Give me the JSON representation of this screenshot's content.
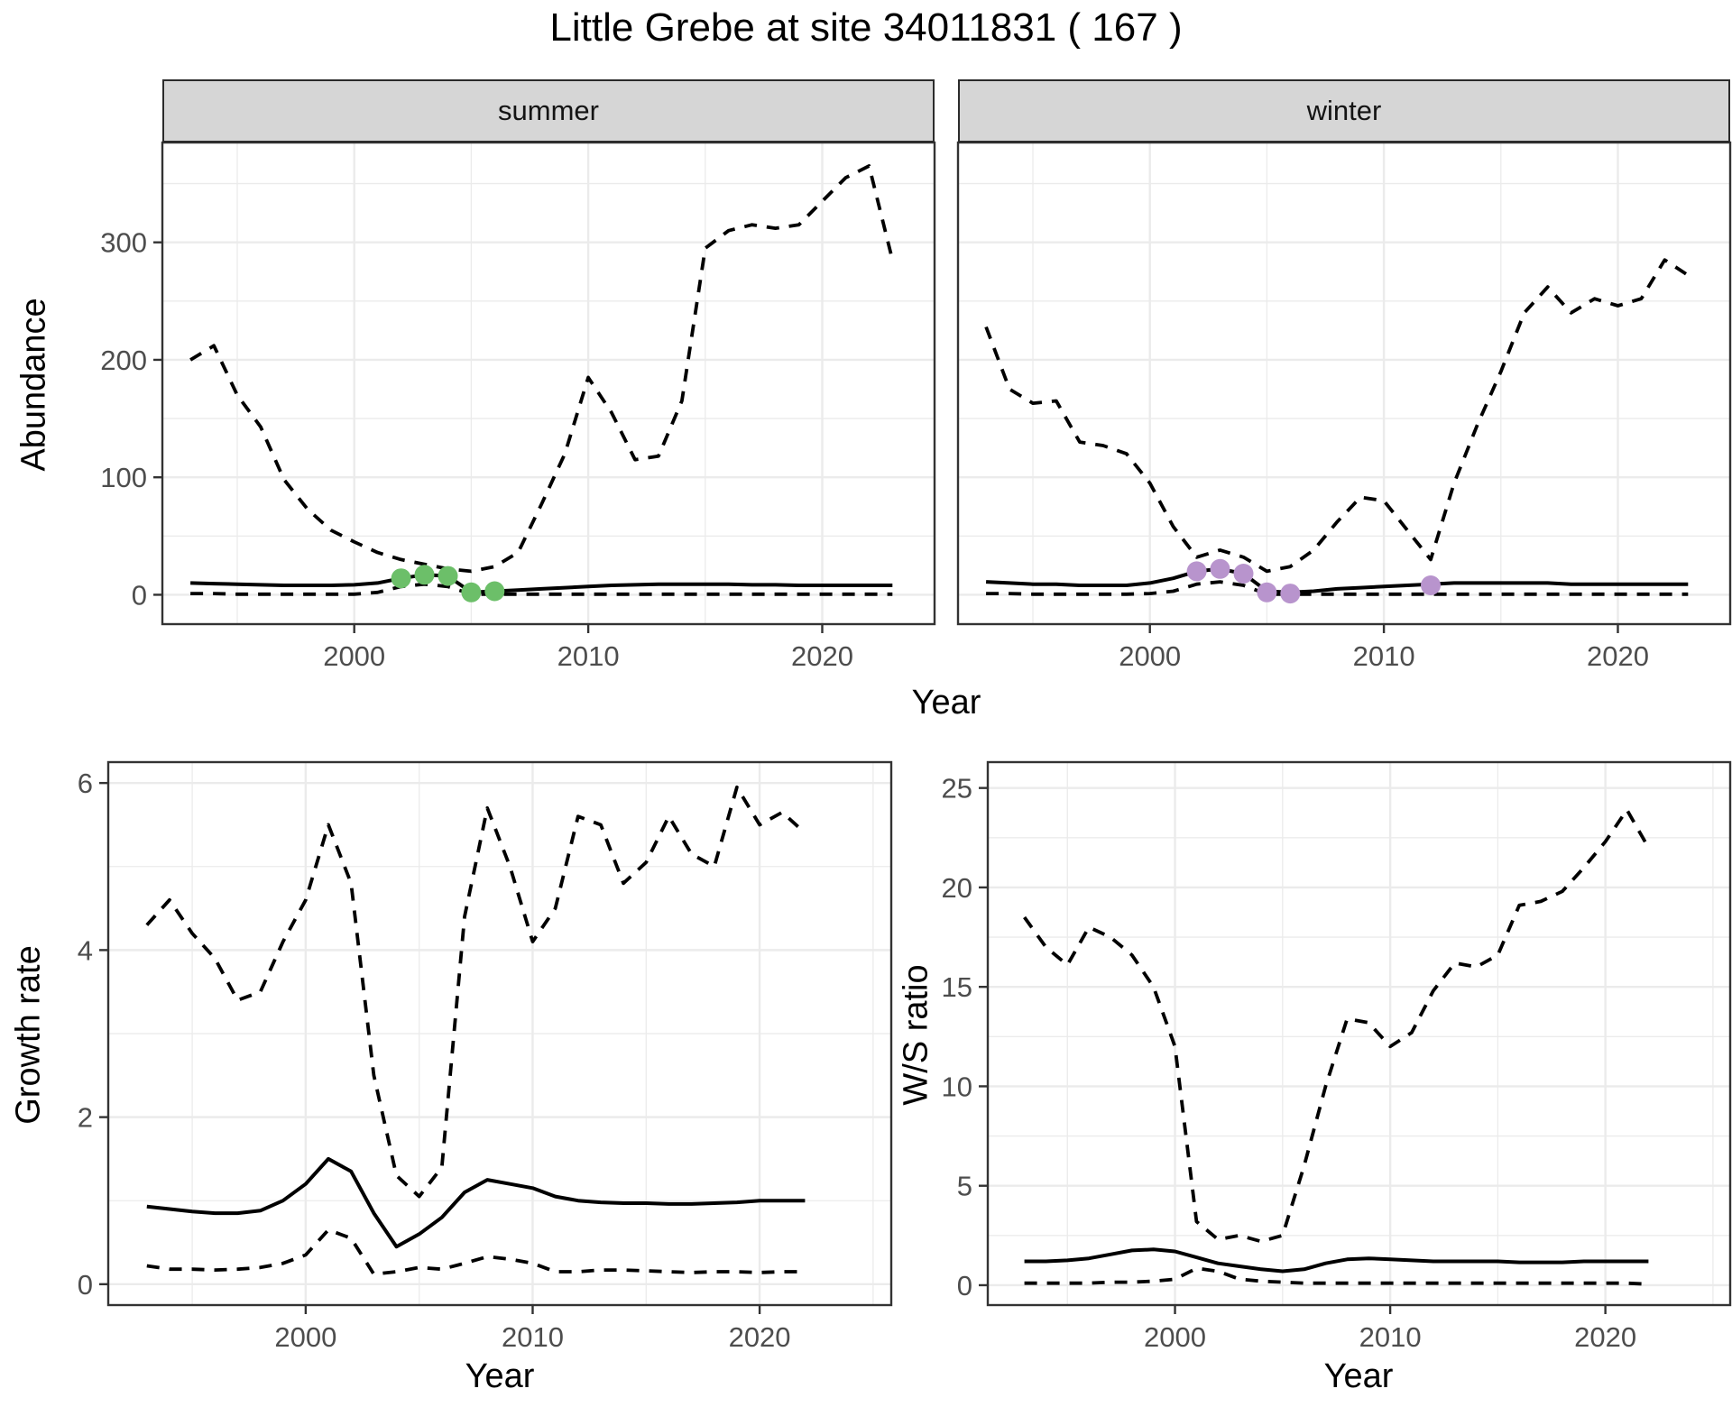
{
  "title": "Little Grebe at site 34011831 ( 167 )",
  "facets": {
    "summer": "summer",
    "winter": "winter"
  },
  "axis_titles": {
    "abundance": "Abundance",
    "year_top": "Year",
    "growth_rate": "Growth rate",
    "ws_ratio": "W/S ratio",
    "year_growth": "Year",
    "year_ws": "Year"
  },
  "colors": {
    "summer_points": "#6cbf69",
    "winter_points": "#b894cd",
    "line": "#000000",
    "grid": "#ebebeb",
    "panel_border": "#333333",
    "strip_bg": "#d6d6d6",
    "tick_text": "#4d4d4d"
  },
  "chart_data": [
    {
      "type": "line",
      "name": "abundance-summer",
      "facet_label": "summer",
      "xlabel": "Year",
      "ylabel": "Abundance",
      "x": [
        1993,
        1994,
        1995,
        1996,
        1997,
        1998,
        1999,
        2000,
        2001,
        2002,
        2003,
        2004,
        2005,
        2006,
        2007,
        2008,
        2009,
        2010,
        2011,
        2012,
        2013,
        2014,
        2015,
        2016,
        2017,
        2018,
        2019,
        2020,
        2021,
        2022,
        2023
      ],
      "series": [
        {
          "name": "upper_ci",
          "style": "dashed",
          "values": [
            200,
            212,
            170,
            143,
            98,
            73,
            55,
            45,
            36,
            30,
            26,
            22,
            20,
            24,
            36,
            77,
            120,
            185,
            155,
            115,
            118,
            165,
            295,
            310,
            315,
            312,
            315,
            335,
            355,
            365,
            285
          ]
        },
        {
          "name": "mean",
          "style": "solid",
          "values": [
            10,
            9.5,
            9,
            8.5,
            8,
            8,
            8,
            8.5,
            10,
            14,
            17,
            16,
            2,
            3,
            4,
            5,
            6,
            7,
            8,
            8.5,
            9,
            9,
            9,
            9,
            8.5,
            8.5,
            8,
            8,
            8,
            8,
            8
          ]
        },
        {
          "name": "lower_ci",
          "style": "dashed",
          "values": [
            1,
            1,
            0.5,
            0.5,
            0.5,
            0.5,
            0.5,
            0.5,
            2,
            7,
            9,
            7,
            0.5,
            0.5,
            0.5,
            0.5,
            0.5,
            0.5,
            0.5,
            0.5,
            0.5,
            0.5,
            0.5,
            0.5,
            0.5,
            0.5,
            0.5,
            0.5,
            0.5,
            0.5,
            0.5
          ]
        }
      ],
      "points": {
        "name": "observed-counts",
        "color": "#6cbf69",
        "x": [
          2002,
          2003,
          2004,
          2005,
          2006
        ],
        "y": [
          14,
          17,
          16,
          2,
          3
        ]
      },
      "xlim": [
        1991.8,
        2024.8
      ],
      "ylim": [
        -25,
        385
      ],
      "xticks": [
        2000,
        2010,
        2020
      ],
      "yticks": [
        0,
        100,
        200,
        300
      ],
      "x_minor": [
        1995,
        2005,
        2015,
        2025
      ],
      "y_minor": [
        50,
        150,
        250,
        350
      ],
      "grid": true,
      "legend": "none"
    },
    {
      "type": "line",
      "name": "abundance-winter",
      "facet_label": "winter",
      "xlabel": "Year",
      "ylabel": "Abundance",
      "x": [
        1993,
        1994,
        1995,
        1996,
        1997,
        1998,
        1999,
        2000,
        2001,
        2002,
        2003,
        2004,
        2005,
        2006,
        2007,
        2008,
        2009,
        2010,
        2011,
        2012,
        2013,
        2014,
        2015,
        2016,
        2017,
        2018,
        2019,
        2020,
        2021,
        2022,
        2023
      ],
      "series": [
        {
          "name": "upper_ci",
          "style": "dashed",
          "values": [
            228,
            175,
            163,
            165,
            130,
            127,
            120,
            95,
            58,
            32,
            38,
            32,
            20,
            24,
            38,
            62,
            83,
            80,
            55,
            30,
            95,
            145,
            190,
            240,
            262,
            240,
            252,
            246,
            252,
            285,
            272
          ]
        },
        {
          "name": "mean",
          "style": "solid",
          "values": [
            11,
            10,
            9,
            9,
            8,
            8,
            8,
            10,
            14,
            20,
            22,
            18,
            3,
            2,
            3,
            5,
            6,
            7,
            8,
            9,
            10,
            10,
            10,
            10,
            10,
            9,
            9,
            9,
            9,
            9,
            9
          ]
        },
        {
          "name": "lower_ci",
          "style": "dashed",
          "values": [
            1,
            1,
            0.5,
            0.5,
            0.5,
            0.5,
            0.5,
            1,
            3,
            9,
            11,
            8,
            0.5,
            0.5,
            0.5,
            0.5,
            0.5,
            0.5,
            0.5,
            0.5,
            0.5,
            0.5,
            0.5,
            0.5,
            0.5,
            0.5,
            0.5,
            0.5,
            0.5,
            0.5,
            0.5
          ]
        }
      ],
      "points": {
        "name": "observed-counts",
        "color": "#b894cd",
        "x": [
          2002,
          2003,
          2004,
          2005,
          2006,
          2012
        ],
        "y": [
          20,
          22,
          18,
          2,
          1,
          8
        ]
      },
      "xlim": [
        1991.8,
        2024.8
      ],
      "ylim": [
        -25,
        385
      ],
      "xticks": [
        2000,
        2010,
        2020
      ],
      "yticks": [
        0,
        100,
        200,
        300
      ],
      "x_minor": [
        1995,
        2005,
        2015,
        2025
      ],
      "y_minor": [
        50,
        150,
        250,
        350
      ],
      "grid": true,
      "legend": "none"
    },
    {
      "type": "line",
      "name": "growth-rate",
      "facet_label": "",
      "xlabel": "Year",
      "ylabel": "Growth rate",
      "x": [
        1993,
        1994,
        1995,
        1996,
        1997,
        1998,
        1999,
        2000,
        2001,
        2002,
        2003,
        2004,
        2005,
        2006,
        2007,
        2008,
        2009,
        2010,
        2011,
        2012,
        2013,
        2014,
        2015,
        2016,
        2017,
        2018,
        2019,
        2020,
        2021,
        2022
      ],
      "series": [
        {
          "name": "upper_ci",
          "style": "dashed",
          "values": [
            4.3,
            4.6,
            4.2,
            3.9,
            3.4,
            3.5,
            4.1,
            4.6,
            5.5,
            4.8,
            2.5,
            1.3,
            1.05,
            1.4,
            4.4,
            5.7,
            5.0,
            4.1,
            4.5,
            5.6,
            5.5,
            4.8,
            5.05,
            5.6,
            5.15,
            5.0,
            5.95,
            5.5,
            5.65,
            5.4
          ]
        },
        {
          "name": "mean",
          "style": "solid",
          "values": [
            0.93,
            0.9,
            0.87,
            0.85,
            0.85,
            0.88,
            1.0,
            1.2,
            1.5,
            1.35,
            0.85,
            0.45,
            0.6,
            0.8,
            1.1,
            1.25,
            1.2,
            1.15,
            1.05,
            1.0,
            0.98,
            0.97,
            0.97,
            0.96,
            0.96,
            0.97,
            0.98,
            1.0,
            1.0,
            1.0
          ]
        },
        {
          "name": "lower_ci",
          "style": "dashed",
          "values": [
            0.22,
            0.18,
            0.18,
            0.17,
            0.18,
            0.2,
            0.25,
            0.35,
            0.65,
            0.55,
            0.12,
            0.15,
            0.2,
            0.18,
            0.25,
            0.33,
            0.3,
            0.25,
            0.15,
            0.15,
            0.17,
            0.17,
            0.16,
            0.15,
            0.14,
            0.15,
            0.15,
            0.14,
            0.15,
            0.15
          ]
        }
      ],
      "points": null,
      "xlim": [
        1991.3,
        2025.8
      ],
      "ylim": [
        -0.25,
        6.25
      ],
      "xticks": [
        2000,
        2010,
        2020
      ],
      "yticks": [
        0,
        2,
        4,
        6
      ],
      "x_minor": [
        1995,
        2005,
        2015,
        2025
      ],
      "y_minor": [
        1,
        3,
        5
      ],
      "grid": true,
      "legend": "none"
    },
    {
      "type": "line",
      "name": "ws-ratio",
      "facet_label": "",
      "xlabel": "Year",
      "ylabel": "W/S ratio",
      "x": [
        1993,
        1994,
        1995,
        1996,
        1997,
        1998,
        1999,
        2000,
        2001,
        2002,
        2003,
        2004,
        2005,
        2006,
        2007,
        2008,
        2009,
        2010,
        2011,
        2012,
        2013,
        2014,
        2015,
        2016,
        2017,
        2018,
        2019,
        2020,
        2021,
        2022
      ],
      "series": [
        {
          "name": "upper_ci",
          "style": "dashed",
          "values": [
            18.5,
            17.0,
            16.1,
            18.0,
            17.5,
            16.6,
            15.0,
            12.0,
            3.2,
            2.3,
            2.5,
            2.2,
            2.5,
            6.0,
            10.0,
            13.4,
            13.2,
            12.0,
            12.7,
            14.8,
            16.2,
            16.0,
            16.6,
            19.1,
            19.3,
            19.8,
            21.0,
            22.3,
            23.9,
            22.0
          ]
        },
        {
          "name": "mean",
          "style": "solid",
          "values": [
            1.2,
            1.2,
            1.25,
            1.35,
            1.55,
            1.75,
            1.8,
            1.7,
            1.4,
            1.1,
            0.95,
            0.8,
            0.7,
            0.8,
            1.1,
            1.3,
            1.35,
            1.3,
            1.25,
            1.2,
            1.2,
            1.2,
            1.2,
            1.15,
            1.15,
            1.15,
            1.2,
            1.2,
            1.2,
            1.2
          ]
        },
        {
          "name": "lower_ci",
          "style": "dashed",
          "values": [
            0.1,
            0.1,
            0.1,
            0.1,
            0.15,
            0.15,
            0.2,
            0.3,
            0.85,
            0.7,
            0.3,
            0.2,
            0.15,
            0.1,
            0.1,
            0.1,
            0.1,
            0.1,
            0.1,
            0.1,
            0.1,
            0.1,
            0.1,
            0.1,
            0.1,
            0.1,
            0.1,
            0.1,
            0.1,
            0.05
          ]
        }
      ],
      "points": null,
      "xlim": [
        1991.3,
        2025.8
      ],
      "ylim": [
        -1.0,
        26.3
      ],
      "xticks": [
        2000,
        2010,
        2020
      ],
      "yticks": [
        0,
        5,
        10,
        15,
        20,
        25
      ],
      "x_minor": [
        1995,
        2005,
        2015,
        2025
      ],
      "y_minor": [
        2.5,
        7.5,
        12.5,
        17.5,
        22.5
      ],
      "grid": true,
      "legend": "none"
    }
  ]
}
